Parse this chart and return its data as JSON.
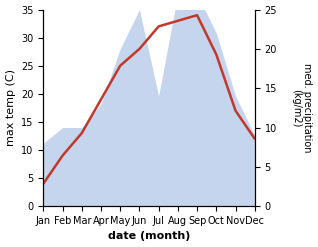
{
  "months": [
    "Jan",
    "Feb",
    "Mar",
    "Apr",
    "May",
    "Jun",
    "Jul",
    "Aug",
    "Sep",
    "Oct",
    "Nov",
    "Dec"
  ],
  "temperature": [
    4,
    9,
    13,
    19,
    25,
    28,
    32,
    33,
    34,
    27,
    17,
    12
  ],
  "precipitation": [
    8,
    10,
    10,
    13,
    20,
    25,
    14,
    27,
    27,
    22,
    14,
    9
  ],
  "temp_color": "#c0392b",
  "precip_color": "#c5d5ee",
  "xlabel": "date (month)",
  "ylabel_left": "max temp (C)",
  "ylabel_right": "med. precipitation\n(kg/m2)",
  "ylim_left": [
    0,
    35
  ],
  "ylim_right": [
    0,
    25
  ],
  "yticks_left": [
    0,
    5,
    10,
    15,
    20,
    25,
    30,
    35
  ],
  "yticks_right": [
    0,
    5,
    10,
    15,
    20,
    25
  ],
  "bg_color": "#ffffff",
  "figure_width": 3.18,
  "figure_height": 2.47,
  "dpi": 100
}
